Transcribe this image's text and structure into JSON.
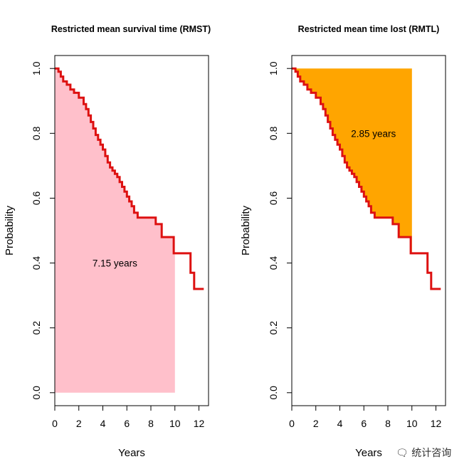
{
  "chart_data": [
    {
      "type": "area",
      "title": "Restricted mean survival time (RMST)",
      "xlabel": "Years",
      "ylabel": "Probability",
      "xlim": [
        0,
        12.8
      ],
      "ylim": [
        -0.04,
        1.04
      ],
      "xticks": [
        0,
        2,
        4,
        6,
        8,
        10,
        12
      ],
      "yticks": [
        0.0,
        0.2,
        0.4,
        0.6,
        0.8,
        1.0
      ],
      "ytick_labels": [
        "0.0",
        "0.2",
        "0.4",
        "0.6",
        "0.8",
        "1.0"
      ],
      "tau": 10,
      "shade": "below",
      "shade_color": "#FFC0CB",
      "curve_color": "#DD1111",
      "annotation": {
        "text": "7.15 years",
        "x": 5,
        "y": 0.4
      },
      "survival_curve": {
        "x": [
          0,
          0.3,
          0.5,
          0.7,
          1.0,
          1.3,
          1.6,
          2.0,
          2.4,
          2.6,
          2.8,
          3.0,
          3.2,
          3.4,
          3.6,
          3.8,
          4.0,
          4.2,
          4.4,
          4.6,
          4.8,
          5.0,
          5.2,
          5.4,
          5.6,
          5.8,
          6.0,
          6.2,
          6.4,
          6.6,
          6.9,
          7.2,
          8.4,
          8.9,
          9.9,
          11.3,
          11.6,
          12.4
        ],
        "y": [
          1.0,
          0.99,
          0.975,
          0.96,
          0.95,
          0.935,
          0.925,
          0.91,
          0.89,
          0.875,
          0.855,
          0.835,
          0.815,
          0.795,
          0.78,
          0.765,
          0.75,
          0.73,
          0.71,
          0.695,
          0.685,
          0.675,
          0.665,
          0.65,
          0.635,
          0.62,
          0.605,
          0.59,
          0.575,
          0.555,
          0.54,
          0.54,
          0.52,
          0.48,
          0.43,
          0.37,
          0.32,
          0.32
        ]
      }
    },
    {
      "type": "area",
      "title": "Restricted mean time lost (RMTL)",
      "xlabel": "Years",
      "ylabel": "Probability",
      "xlim": [
        0,
        12.8
      ],
      "ylim": [
        -0.04,
        1.04
      ],
      "xticks": [
        0,
        2,
        4,
        6,
        8,
        10,
        12
      ],
      "yticks": [
        0.0,
        0.2,
        0.4,
        0.6,
        0.8,
        1.0
      ],
      "ytick_labels": [
        "0.0",
        "0.2",
        "0.4",
        "0.6",
        "0.8",
        "1.0"
      ],
      "tau": 10,
      "shade": "above",
      "shade_color": "#FFA500",
      "curve_color": "#DD1111",
      "annotation": {
        "text": "2.85 years",
        "x": 6.8,
        "y": 0.8
      },
      "survival_curve": {
        "x": [
          0,
          0.3,
          0.5,
          0.7,
          1.0,
          1.3,
          1.6,
          2.0,
          2.4,
          2.6,
          2.8,
          3.0,
          3.2,
          3.4,
          3.6,
          3.8,
          4.0,
          4.2,
          4.4,
          4.6,
          4.8,
          5.0,
          5.2,
          5.4,
          5.6,
          5.8,
          6.0,
          6.2,
          6.4,
          6.6,
          6.9,
          7.2,
          8.4,
          8.9,
          9.9,
          11.3,
          11.6,
          12.4
        ],
        "y": [
          1.0,
          0.99,
          0.975,
          0.96,
          0.95,
          0.935,
          0.925,
          0.91,
          0.89,
          0.875,
          0.855,
          0.835,
          0.815,
          0.795,
          0.78,
          0.765,
          0.75,
          0.73,
          0.71,
          0.695,
          0.685,
          0.675,
          0.665,
          0.65,
          0.635,
          0.62,
          0.605,
          0.59,
          0.575,
          0.555,
          0.54,
          0.54,
          0.52,
          0.48,
          0.43,
          0.37,
          0.32,
          0.32
        ]
      }
    }
  ],
  "watermark": {
    "icon": "chat-bubble-icon",
    "text": "统计咨询"
  }
}
